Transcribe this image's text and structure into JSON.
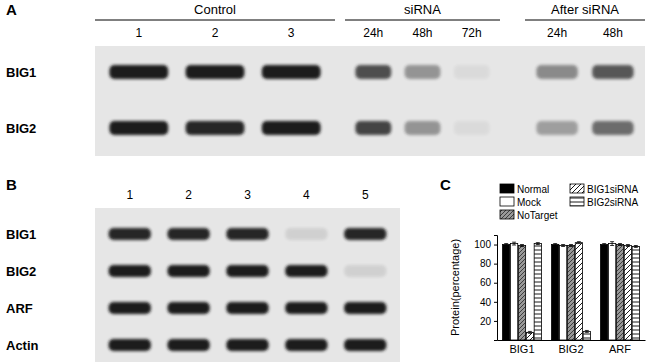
{
  "panels": [
    {
      "label": "A",
      "groups": [
        {
          "name": "Control",
          "lanes": [
            "1",
            "2",
            "3"
          ]
        },
        {
          "name": "siRNA",
          "lanes": [
            "24h",
            "48h",
            "72h"
          ]
        },
        {
          "name": "After siRNA",
          "lanes": [
            "24h",
            "48h"
          ]
        }
      ],
      "rows": [
        {
          "name": "BIG1",
          "intensity": [
            1.0,
            1.0,
            1.0,
            0.75,
            0.4,
            0.05,
            0.45,
            0.7
          ]
        },
        {
          "name": "BIG2",
          "intensity": [
            1.0,
            0.95,
            1.0,
            0.8,
            0.4,
            0.05,
            0.35,
            0.6
          ]
        }
      ]
    },
    {
      "label": "B",
      "lanes": [
        "1",
        "2",
        "3",
        "4",
        "5"
      ],
      "rows": [
        {
          "name": "BIG1",
          "intensity": [
            0.95,
            0.95,
            0.95,
            0.1,
            0.95
          ]
        },
        {
          "name": "BIG2",
          "intensity": [
            1.0,
            1.0,
            1.0,
            1.0,
            0.1
          ]
        },
        {
          "name": "ARF",
          "intensity": [
            1.0,
            1.0,
            1.0,
            1.0,
            1.0
          ]
        },
        {
          "name": "Actin",
          "intensity": [
            1.0,
            1.0,
            1.0,
            1.0,
            1.0
          ]
        }
      ]
    }
  ],
  "chart_data": {
    "type": "bar",
    "title": "C",
    "y_label": "Protein(percentage)",
    "categories": [
      "BIG1",
      "BIG2",
      "ARF"
    ],
    "series": [
      {
        "name": "Normal",
        "color": "#000000",
        "values": [
          100,
          100,
          100
        ],
        "errors": [
          1,
          1,
          1
        ]
      },
      {
        "name": "Mock",
        "color": "#ffffff",
        "values": [
          101,
          99,
          101
        ],
        "errors": [
          1.5,
          1,
          2
        ]
      },
      {
        "name": "NoTarget",
        "color": "#999999",
        "values": [
          99,
          99,
          100
        ],
        "errors": [
          1,
          1,
          1
        ]
      },
      {
        "name": "BIG1siRNA",
        "color": "#ffffff",
        "values": [
          8,
          102,
          99
        ],
        "errors": [
          1,
          1,
          1
        ]
      },
      {
        "name": "BIG2siRNA",
        "color": "#ffffff",
        "values": [
          101,
          9,
          98
        ],
        "errors": [
          1,
          1,
          1
        ]
      }
    ],
    "ylim": [
      0,
      110
    ],
    "yticks": [
      20,
      40,
      60,
      80,
      100
    ],
    "legend": "top"
  }
}
